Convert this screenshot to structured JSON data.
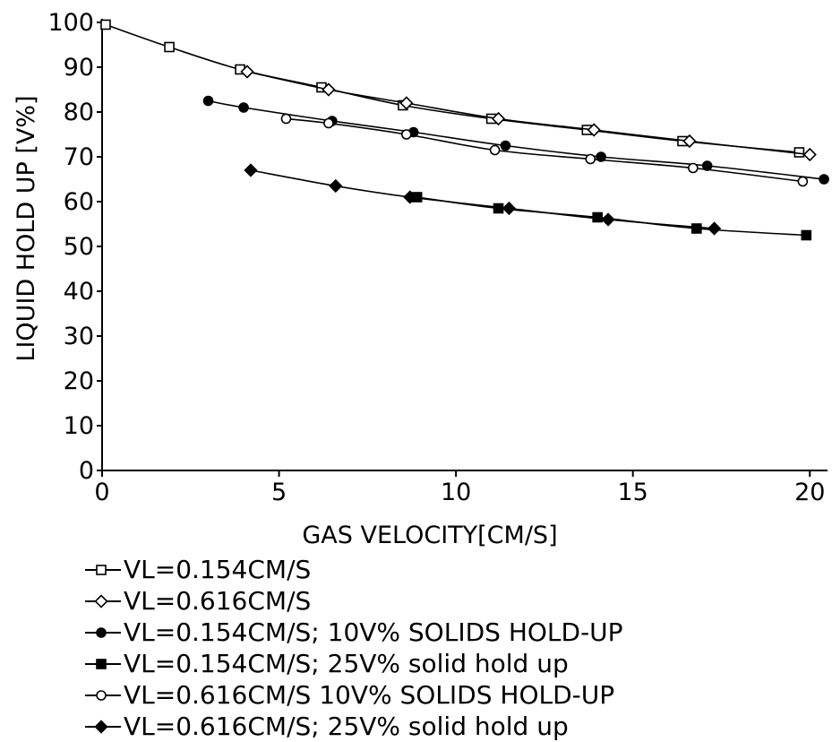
{
  "chart_data": {
    "type": "line",
    "xlabel": "GAS VELOCITY[CM/S]",
    "ylabel": "LIQUID HOLD UP [V%]",
    "xlim": [
      0,
      20.5
    ],
    "ylim": [
      0,
      100
    ],
    "xticks": [
      0,
      5,
      10,
      15,
      20
    ],
    "xtick_labels": [
      "0",
      "5",
      "10",
      "15",
      "20"
    ],
    "yticks": [
      0,
      10,
      20,
      30,
      40,
      50,
      60,
      70,
      80,
      90,
      100
    ],
    "ytick_labels": [
      "0",
      "10",
      "20",
      "30",
      "40",
      "50",
      "60",
      "70",
      "80",
      "90",
      "100"
    ],
    "grid": false,
    "legend_position": "below",
    "series": [
      {
        "name": "VL=0.154CM/S",
        "marker": "open-square",
        "color": "#000000",
        "x": [
          0.1,
          1.9,
          3.9,
          6.2,
          8.5,
          11.0,
          13.7,
          16.4,
          19.7
        ],
        "y": [
          99.5,
          94.5,
          89.5,
          85.5,
          81.5,
          78.5,
          76.0,
          73.5,
          71.0
        ]
      },
      {
        "name": "VL=0.616CM/S",
        "marker": "open-diamond",
        "color": "#000000",
        "x": [
          4.1,
          6.4,
          8.6,
          11.2,
          13.9,
          16.6,
          20.0
        ],
        "y": [
          89.0,
          85.0,
          82.0,
          78.5,
          76.0,
          73.5,
          70.5
        ]
      },
      {
        "name": "VL=0.154CM/S; 10V% SOLIDS HOLD-UP",
        "marker": "filled-circle",
        "color": "#000000",
        "x": [
          3.0,
          4.0,
          6.5,
          8.8,
          11.4,
          14.1,
          17.1,
          20.4
        ],
        "y": [
          82.5,
          81.0,
          78.0,
          75.5,
          72.5,
          70.0,
          68.0,
          65.0
        ]
      },
      {
        "name": "VL=0.154CM/S; 25V% solid hold up",
        "marker": "filled-square",
        "color": "#000000",
        "x": [
          8.9,
          11.2,
          14.0,
          16.8,
          19.9
        ],
        "y": [
          61.0,
          58.5,
          56.5,
          54.0,
          52.5
        ]
      },
      {
        "name": "VL=0.616CM/S 10V% SOLIDS HOLD-UP",
        "marker": "open-circle",
        "color": "#000000",
        "x": [
          5.2,
          6.4,
          8.6,
          11.1,
          13.8,
          16.7,
          19.8
        ],
        "y": [
          78.5,
          77.5,
          75.0,
          71.5,
          69.5,
          67.5,
          64.5
        ]
      },
      {
        "name": "VL=0.616CM/S; 25V% solid hold up",
        "marker": "filled-diamond",
        "color": "#000000",
        "x": [
          4.2,
          6.6,
          8.7,
          11.5,
          14.3,
          17.3
        ],
        "y": [
          67.0,
          63.5,
          61.0,
          58.5,
          56.0,
          54.0
        ]
      }
    ]
  }
}
